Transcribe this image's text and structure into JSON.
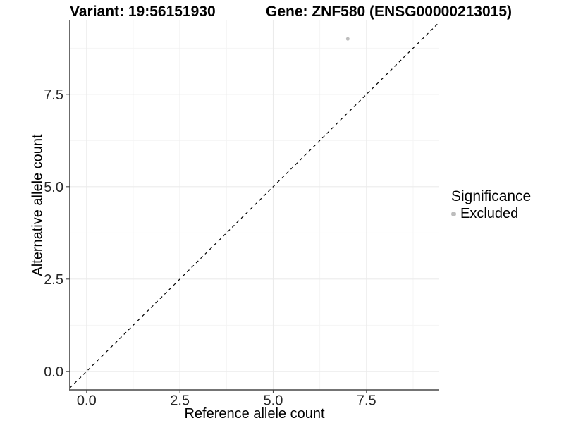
{
  "header": {
    "variant_title": "Variant: 19:56151930",
    "gene_title": "Gene: ZNF580 (ENSG00000213015)"
  },
  "axes": {
    "x_label": "Reference allele count",
    "y_label": "Alternative allele count"
  },
  "legend": {
    "title": "Significance",
    "items": [
      {
        "label": "Excluded",
        "marker": "circle-icon",
        "color": "#bdbdbd"
      }
    ]
  },
  "chart_data": {
    "type": "scatter",
    "title_left": "Variant: 19:56151930",
    "title_right": "Gene: ZNF580 (ENSG00000213015)",
    "xlabel": "Reference allele count",
    "ylabel": "Alternative allele count",
    "xlim": [
      -0.45,
      9.45
    ],
    "ylim": [
      -0.5,
      9.5
    ],
    "x_ticks": [
      0.0,
      2.5,
      5.0,
      7.5
    ],
    "y_ticks": [
      0.0,
      2.5,
      5.0,
      7.5
    ],
    "x_tick_labels": [
      "0.0",
      "2.5",
      "5.0",
      "7.5"
    ],
    "y_tick_labels": [
      "0.0",
      "2.5",
      "5.0",
      "7.5"
    ],
    "x_minor_breaks": [
      1.25,
      3.75,
      6.25,
      8.75
    ],
    "y_minor_breaks": [
      1.25,
      3.75,
      6.25,
      8.75
    ],
    "grid": true,
    "legend_position": "right",
    "series": [
      {
        "name": "Excluded",
        "points": [
          {
            "x": 7,
            "y": 9
          }
        ],
        "color": "#bdbdbd"
      }
    ],
    "reference_line": {
      "kind": "abline",
      "slope": 1,
      "intercept": 0,
      "style": "dashed",
      "color": "#000000"
    },
    "colors": {
      "point": "#bdbdbd",
      "grid_major": "#ebebeb",
      "grid_minor": "#f4f4f4",
      "axis_line": "#464646",
      "tick_text": "#262626"
    }
  }
}
